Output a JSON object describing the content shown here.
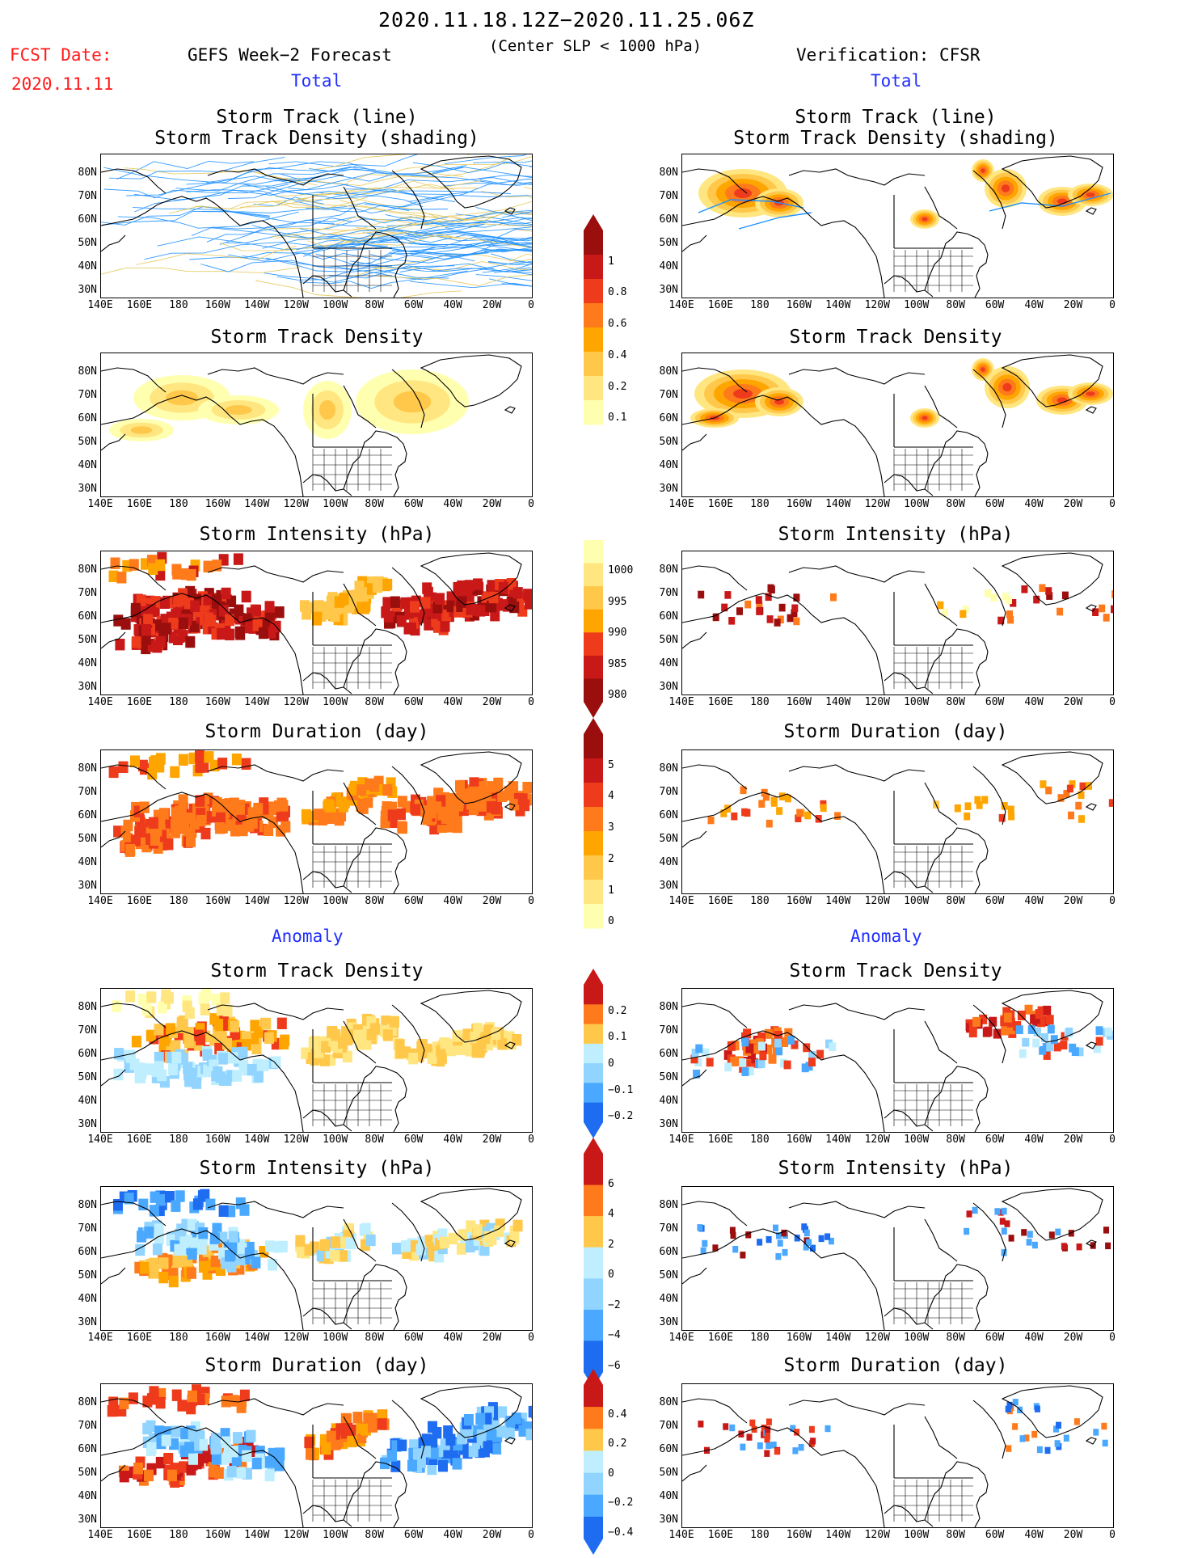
{
  "header": {
    "period": "2020.11.18.12Z−2020.11.25.06Z",
    "criterion": "(Center SLP < 1000 hPa)",
    "fcst_date_label": "FCST Date:",
    "fcst_date": "2020.11.11",
    "forecast_label": "GEFS Week−2 Forecast",
    "verification_label": "Verification: CFSR",
    "total_left": "Total",
    "total_right": "Total",
    "anomaly_left": "Anomaly",
    "anomaly_right": "Anomaly"
  },
  "panel_titles": {
    "track_line": "Storm Track (line)",
    "track_shading": "Storm Track Density (shading)",
    "density": "Storm Track Density",
    "intensity": "Storm Intensity (hPa)",
    "duration": "Storm Duration (day)"
  },
  "axes": {
    "lat_labels": [
      "80N",
      "70N",
      "60N",
      "50N",
      "40N",
      "30N"
    ],
    "lon_labels": [
      "140E",
      "160E",
      "180",
      "160W",
      "140W",
      "120W",
      "100W",
      "80W",
      "60W",
      "40W",
      "20W",
      "0"
    ]
  },
  "colorbars": {
    "density_total": [
      "1",
      "0.8",
      "0.6",
      "0.4",
      "0.2",
      "0.1"
    ],
    "intensity_total": [
      "1000",
      "995",
      "990",
      "985",
      "980"
    ],
    "duration_total": [
      "5",
      "4",
      "3",
      "2",
      "1",
      "0"
    ],
    "density_anom": [
      "0.2",
      "0.1",
      "0",
      "−0.1",
      "−0.2"
    ],
    "intensity_anom": [
      "6",
      "4",
      "2",
      "0",
      "−2",
      "−4",
      "−6"
    ],
    "duration_anom": [
      "0.4",
      "0.2",
      "0",
      "−0.2",
      "−0.4"
    ]
  },
  "colors": {
    "title_red": "#ff1a1a",
    "title_blue": "#1f2dff",
    "track_line": "#1e90ff",
    "warm": [
      "#ffffb0",
      "#ffe680",
      "#ffc84a",
      "#ffa500",
      "#ff7a1a",
      "#ee3b1c",
      "#c81818",
      "#9a0e0e"
    ],
    "cool": [
      "#bfefff",
      "#90d4ff",
      "#4aa8ff",
      "#1e6cf0"
    ]
  }
}
